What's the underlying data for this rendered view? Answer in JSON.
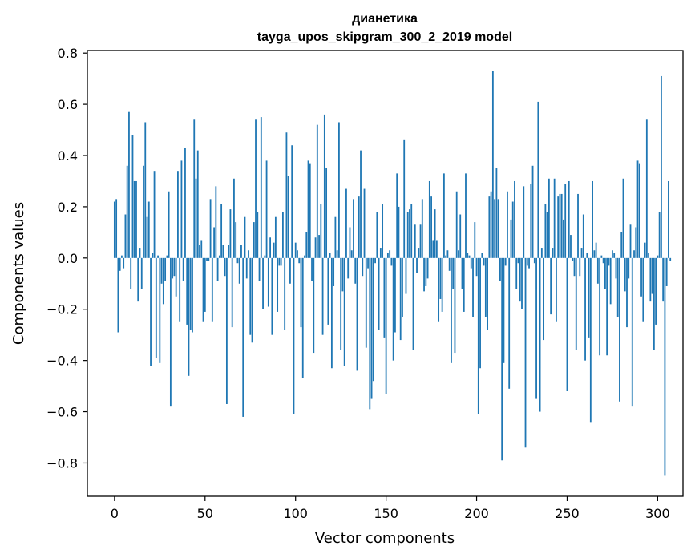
{
  "chart_data": {
    "type": "bar",
    "title": "дианетика",
    "subtitle": "tayga_upos_skipgram_300_2_2019 model",
    "xlabel": "Vector components",
    "ylabel": "Components values",
    "xlim": [
      -15,
      314
    ],
    "ylim": [
      -0.93,
      0.81
    ],
    "xticks": [
      0,
      50,
      100,
      150,
      200,
      250,
      300
    ],
    "xtick_labels": [
      "0",
      "50",
      "100",
      "150",
      "200",
      "250",
      "300"
    ],
    "yticks": [
      -0.8,
      -0.6,
      -0.4,
      -0.2,
      0.0,
      0.2,
      0.4,
      0.6,
      0.8
    ],
    "ytick_labels": [
      "−0.8",
      "−0.6",
      "−0.4",
      "−0.2",
      "0.0",
      "0.2",
      "0.4",
      "0.6",
      "0.8"
    ],
    "grid": false,
    "legend": "none",
    "bar_color": "#1f77b4",
    "series": [
      {
        "values": [
          0.22,
          0.23,
          -0.29,
          -0.05,
          0.01,
          -0.04,
          0.17,
          0.36,
          0.57,
          -0.12,
          0.48,
          0.3,
          0.3,
          -0.17,
          0.04,
          -0.12,
          0.36,
          0.53,
          0.16,
          0.22,
          -0.42,
          0.02,
          0.34,
          -0.39,
          0.01,
          -0.41,
          -0.1,
          -0.18,
          -0.09,
          0.01,
          0.26,
          -0.58,
          -0.08,
          -0.07,
          -0.15,
          0.34,
          -0.25,
          0.38,
          -0.09,
          0.43,
          -0.26,
          -0.46,
          -0.28,
          -0.29,
          0.54,
          0.31,
          0.42,
          0.05,
          0.07,
          -0.25,
          -0.21,
          -0.01,
          -0.01,
          0.23,
          -0.25,
          0.12,
          0.28,
          -0.09,
          0.01,
          0.21,
          0.05,
          -0.07,
          -0.57,
          0.05,
          0.19,
          -0.27,
          0.31,
          0.14,
          -0.02,
          -0.1,
          0.05,
          -0.62,
          0.16,
          -0.08,
          0.03,
          -0.3,
          -0.33,
          0.14,
          0.54,
          0.18,
          -0.09,
          0.55,
          -0.2,
          0.01,
          0.38,
          -0.19,
          0.08,
          -0.3,
          0.06,
          0.16,
          -0.21,
          -0.03,
          -0.03,
          0.18,
          -0.28,
          0.49,
          0.32,
          -0.1,
          0.44,
          -0.61,
          0.06,
          0.03,
          -0.02,
          -0.27,
          -0.47,
          0.01,
          0.1,
          0.38,
          0.37,
          -0.09,
          -0.37,
          0.08,
          0.52,
          0.09,
          0.21,
          -0.3,
          0.56,
          0.35,
          -0.26,
          0.02,
          -0.43,
          -0.11,
          0.16,
          0.03,
          0.53,
          -0.36,
          -0.13,
          -0.42,
          0.27,
          -0.08,
          0.12,
          0.03,
          0.23,
          -0.1,
          -0.44,
          0.24,
          0.42,
          -0.07,
          0.27,
          -0.35,
          -0.04,
          -0.59,
          -0.55,
          -0.48,
          -0.02,
          0.18,
          -0.28,
          0.04,
          0.21,
          -0.31,
          -0.53,
          0.02,
          0.03,
          -0.03,
          -0.4,
          -0.29,
          0.33,
          0.2,
          -0.32,
          -0.23,
          0.46,
          -0.14,
          0.18,
          0.19,
          0.21,
          -0.36,
          0.13,
          -0.06,
          0.04,
          0.13,
          0.23,
          -0.13,
          -0.11,
          -0.08,
          0.3,
          0.24,
          0.07,
          0.19,
          0.07,
          -0.25,
          -0.16,
          -0.21,
          0.33,
          0.01,
          0.03,
          -0.05,
          -0.41,
          -0.12,
          -0.37,
          0.26,
          0.03,
          0.17,
          -0.12,
          -0.21,
          0.33,
          0.02,
          0.01,
          -0.04,
          -0.23,
          0.14,
          -0.07,
          -0.61,
          -0.43,
          0.02,
          -0.03,
          -0.23,
          -0.28,
          0.24,
          0.26,
          0.73,
          0.23,
          0.35,
          0.23,
          -0.09,
          -0.79,
          -0.41,
          -0.03,
          0.26,
          -0.51,
          0.15,
          0.22,
          0.3,
          -0.12,
          -0.02,
          -0.17,
          -0.2,
          0.28,
          -0.74,
          -0.03,
          -0.04,
          0.29,
          0.36,
          -0.02,
          -0.55,
          0.61,
          -0.6,
          0.04,
          -0.32,
          0.21,
          0.18,
          0.31,
          -0.22,
          0.04,
          0.31,
          -0.25,
          0.24,
          0.25,
          0.25,
          0.15,
          0.29,
          -0.52,
          0.3,
          0.09,
          -0.01,
          -0.07,
          -0.36,
          0.25,
          -0.07,
          0.04,
          0.17,
          -0.4,
          0.02,
          -0.31,
          -0.64,
          0.3,
          0.03,
          0.06,
          -0.1,
          -0.38,
          0.01,
          -0.02,
          -0.12,
          -0.38,
          -0.03,
          -0.18,
          0.03,
          0.02,
          -0.08,
          -0.23,
          -0.56,
          0.1,
          0.31,
          -0.13,
          -0.27,
          -0.08,
          0.13,
          -0.58,
          0.03,
          0.12,
          0.38,
          0.37,
          -0.15,
          -0.25,
          0.06,
          0.54,
          0.02,
          -0.17,
          -0.14,
          -0.36,
          -0.26,
          0.01,
          0.18,
          0.71,
          -0.17,
          -0.85,
          -0.11,
          0.3,
          -0.01
        ]
      }
    ]
  }
}
